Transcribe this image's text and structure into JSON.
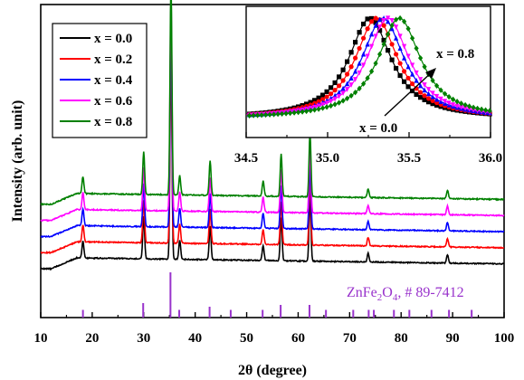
{
  "chart_data": [
    {
      "type": "line",
      "xlabel": "2θ (degree)",
      "ylabel": "Intensity (arb. unit)",
      "xlim": [
        10,
        100
      ],
      "xticks": [
        10,
        20,
        30,
        40,
        50,
        60,
        70,
        80,
        90,
        100
      ],
      "yticks_shown": false,
      "legend": {
        "position": "top-left",
        "entries": [
          "x = 0.0",
          "x = 0.2",
          "x = 0.4",
          "x = 0.6",
          "x = 0.8"
        ]
      },
      "series": [
        {
          "name": "x = 0.0",
          "color": "#000000",
          "offset": 0.0
        },
        {
          "name": "x = 0.2",
          "color": "#ff0000",
          "offset": 0.1
        },
        {
          "name": "x = 0.4",
          "color": "#0000ff",
          "offset": 0.2
        },
        {
          "name": "x = 0.6",
          "color": "#ff00ff",
          "offset": 0.3
        },
        {
          "name": "x = 0.8",
          "color": "#008000",
          "offset": 0.4
        }
      ],
      "peaks": [
        {
          "x": 18.2,
          "h": 0.08
        },
        {
          "x": 30.0,
          "h": 0.2
        },
        {
          "x": 35.3,
          "h": 1.0
        },
        {
          "x": 37.0,
          "h": 0.09
        },
        {
          "x": 42.9,
          "h": 0.16
        },
        {
          "x": 53.2,
          "h": 0.07
        },
        {
          "x": 56.7,
          "h": 0.2
        },
        {
          "x": 62.3,
          "h": 0.3
        },
        {
          "x": 73.6,
          "h": 0.04
        },
        {
          "x": 89.0,
          "h": 0.04
        }
      ],
      "reference": {
        "label_parts": [
          "ZnFe",
          "2",
          "O",
          "4",
          ", # 89-7412"
        ],
        "color": "#9933cc",
        "lines": [
          {
            "x": 18.2,
            "h": 0.17
          },
          {
            "x": 29.9,
            "h": 0.32
          },
          {
            "x": 35.2,
            "h": 1.0
          },
          {
            "x": 36.9,
            "h": 0.17
          },
          {
            "x": 42.8,
            "h": 0.24
          },
          {
            "x": 46.9,
            "h": 0.17
          },
          {
            "x": 53.1,
            "h": 0.17
          },
          {
            "x": 56.6,
            "h": 0.28
          },
          {
            "x": 62.2,
            "h": 0.28
          },
          {
            "x": 65.4,
            "h": 0.17
          },
          {
            "x": 70.7,
            "h": 0.17
          },
          {
            "x": 73.7,
            "h": 0.17
          },
          {
            "x": 74.7,
            "h": 0.17
          },
          {
            "x": 78.6,
            "h": 0.17
          },
          {
            "x": 81.6,
            "h": 0.17
          },
          {
            "x": 85.9,
            "h": 0.17
          },
          {
            "x": 89.3,
            "h": 0.17
          },
          {
            "x": 93.7,
            "h": 0.17
          }
        ]
      }
    },
    {
      "type": "line",
      "xlim": [
        34.5,
        36.0
      ],
      "xticks": [
        34.5,
        35.0,
        35.5,
        36.0
      ],
      "tick_labels": [
        "34.5",
        "35.0",
        "35.5",
        "36.0"
      ],
      "annotations": [
        {
          "text": "x = 0.8",
          "position": "upper-right"
        },
        {
          "text": "x = 0.0",
          "position": "lower-middle"
        }
      ],
      "series": [
        {
          "name": "x = 0.0",
          "color": "#000000",
          "center": 35.26,
          "marker": "square"
        },
        {
          "name": "x = 0.2",
          "color": "#ff0000",
          "center": 35.3,
          "marker": "circle"
        },
        {
          "name": "x = 0.4",
          "color": "#0000ff",
          "center": 35.34,
          "marker": "triangle"
        },
        {
          "name": "x = 0.6",
          "color": "#ff00ff",
          "center": 35.37,
          "marker": "triangle-down"
        },
        {
          "name": "x = 0.8",
          "color": "#008000",
          "center": 35.44,
          "marker": "diamond"
        }
      ]
    }
  ]
}
